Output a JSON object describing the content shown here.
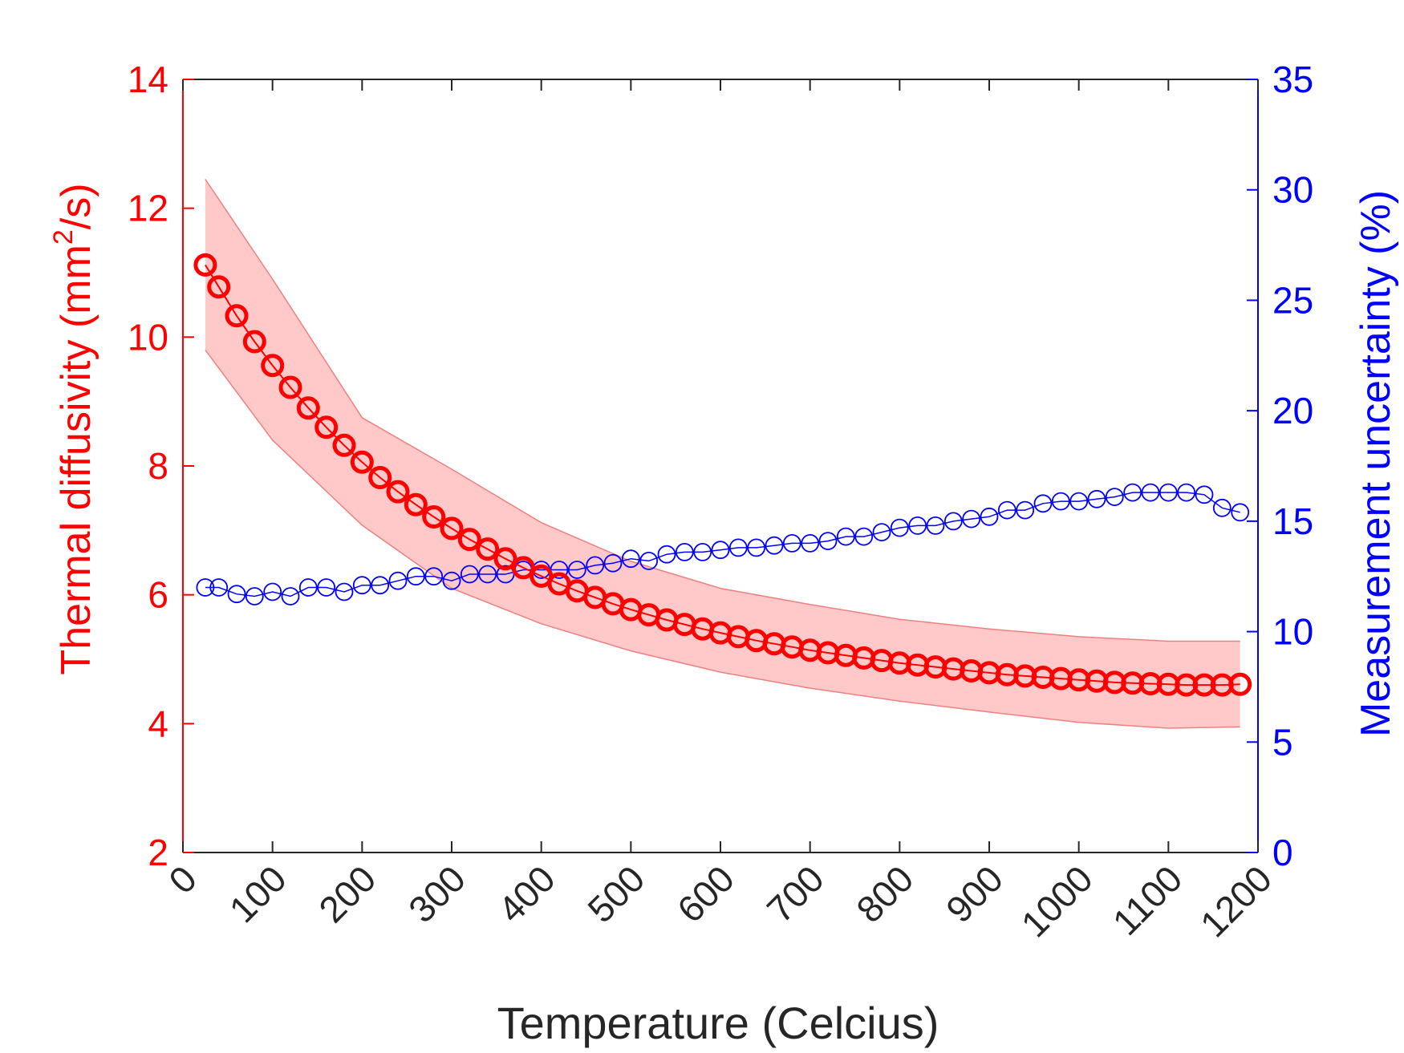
{
  "chart_data": {
    "type": "line",
    "xlabel": "Temperature (Celcius)",
    "ylabel_left": {
      "prefix": "Thermal diffusivity (mm",
      "superscript": "2",
      "suffix": "/s)"
    },
    "ylabel_right": "Measurement uncertainty (%)",
    "xlim": [
      0,
      1200
    ],
    "ylim_left": [
      2,
      14
    ],
    "ylim_right": [
      0,
      35
    ],
    "x_ticks": [
      0,
      100,
      200,
      300,
      400,
      500,
      600,
      700,
      800,
      900,
      1000,
      1100,
      1200
    ],
    "y_ticks_left": [
      2,
      4,
      6,
      8,
      10,
      12,
      14
    ],
    "y_ticks_right": [
      0,
      5,
      10,
      15,
      20,
      25,
      30,
      35
    ],
    "grid": false,
    "colors": {
      "left_axis": "#ff0000",
      "right_axis": "#0000ff",
      "band_fill": "#ffc9c9",
      "band_edge": "#f08080",
      "bottom_axis": "#262626"
    },
    "x": [
      25,
      40,
      60,
      80,
      100,
      120,
      140,
      160,
      180,
      200,
      220,
      240,
      260,
      280,
      300,
      320,
      340,
      360,
      380,
      400,
      420,
      440,
      460,
      480,
      500,
      520,
      540,
      560,
      580,
      600,
      620,
      640,
      660,
      680,
      700,
      720,
      740,
      760,
      780,
      800,
      820,
      840,
      860,
      880,
      900,
      920,
      940,
      960,
      980,
      1000,
      1020,
      1040,
      1060,
      1080,
      1100,
      1120,
      1140,
      1160,
      1180
    ],
    "series": [
      {
        "axis": "left",
        "values": [
          11.12,
          10.78,
          10.33,
          9.93,
          9.56,
          9.22,
          8.9,
          8.6,
          8.32,
          8.06,
          7.82,
          7.6,
          7.4,
          7.21,
          7.03,
          6.86,
          6.71,
          6.56,
          6.42,
          6.29,
          6.17,
          6.06,
          5.96,
          5.86,
          5.77,
          5.69,
          5.61,
          5.54,
          5.47,
          5.41,
          5.35,
          5.29,
          5.24,
          5.19,
          5.14,
          5.1,
          5.06,
          5.02,
          4.98,
          4.94,
          4.91,
          4.88,
          4.85,
          4.82,
          4.79,
          4.76,
          4.74,
          4.72,
          4.7,
          4.68,
          4.66,
          4.64,
          4.63,
          4.62,
          4.61,
          4.6,
          4.6,
          4.6,
          4.61
        ]
      },
      {
        "axis": "right",
        "values": [
          12.0,
          12.0,
          11.7,
          11.6,
          11.8,
          11.6,
          12.0,
          12.0,
          11.8,
          12.1,
          12.1,
          12.3,
          12.5,
          12.5,
          12.3,
          12.6,
          12.6,
          12.6,
          12.8,
          12.8,
          12.8,
          12.8,
          13.0,
          13.1,
          13.3,
          13.2,
          13.5,
          13.6,
          13.6,
          13.7,
          13.8,
          13.8,
          13.9,
          14.0,
          14.0,
          14.1,
          14.3,
          14.3,
          14.5,
          14.7,
          14.8,
          14.8,
          15.0,
          15.1,
          15.2,
          15.5,
          15.5,
          15.8,
          15.9,
          15.9,
          16.0,
          16.1,
          16.3,
          16.3,
          16.3,
          16.3,
          16.2,
          15.6,
          15.4
        ]
      }
    ],
    "band": {
      "axis": "left",
      "x": [
        25,
        100,
        200,
        300,
        400,
        500,
        600,
        700,
        800,
        900,
        1000,
        1100,
        1180
      ],
      "upper": [
        12.45,
        10.9,
        8.75,
        7.95,
        7.12,
        6.52,
        6.1,
        5.85,
        5.62,
        5.47,
        5.35,
        5.28,
        5.28
      ],
      "lower": [
        9.8,
        8.4,
        7.08,
        6.1,
        5.55,
        5.13,
        4.8,
        4.55,
        4.35,
        4.18,
        4.02,
        3.93,
        3.95
      ]
    }
  }
}
